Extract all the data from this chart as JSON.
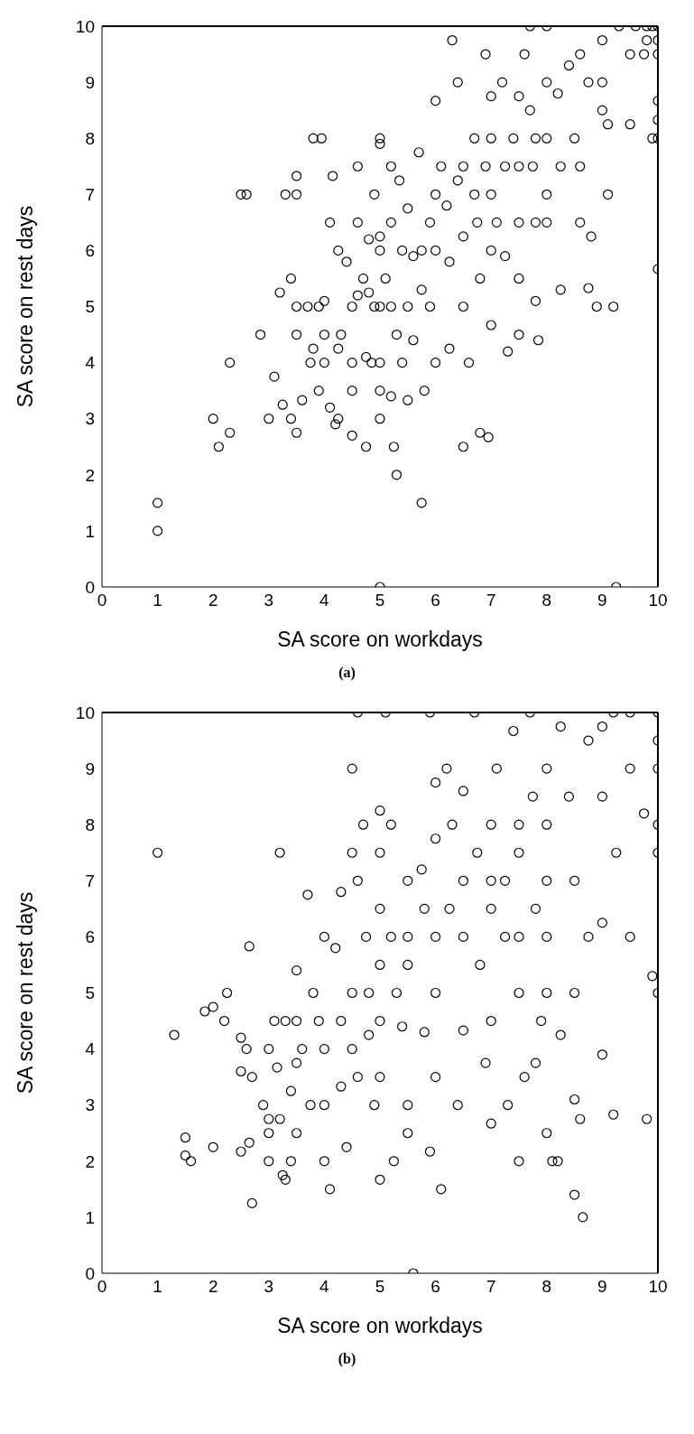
{
  "chart_data": [
    {
      "type": "scatter",
      "xlabel": "SA score on workdays",
      "ylabel": "SA score on rest days",
      "xlim": [
        0,
        10
      ],
      "ylim": [
        0,
        10
      ],
      "xticks": [
        0,
        1,
        2,
        3,
        4,
        5,
        6,
        7,
        8,
        9,
        10
      ],
      "yticks": [
        0,
        1,
        2,
        3,
        4,
        5,
        6,
        7,
        8,
        9,
        10
      ],
      "marker": "circle",
      "annotations": [
        "(a)"
      ],
      "series": [
        {
          "color": "#000000",
          "x": [
            1,
            1,
            2,
            2.1,
            2.3,
            2.3,
            2.5,
            2.6,
            2.85,
            3,
            3.1,
            3.2,
            3.25,
            3.3,
            3.4,
            3.4,
            3.5,
            3.5,
            3.5,
            3.5,
            3.5,
            3.6,
            3.7,
            3.75,
            3.8,
            3.8,
            3.9,
            3.9,
            3.95,
            4,
            4,
            4,
            4.1,
            4.1,
            4.15,
            4.2,
            4.25,
            4.25,
            4.25,
            4.3,
            4.4,
            4.5,
            4.5,
            4.5,
            4.5,
            4.6,
            4.6,
            4.6,
            4.7,
            4.75,
            4.75,
            4.8,
            4.8,
            4.85,
            4.9,
            4.9,
            5,
            5,
            5,
            5,
            5,
            5,
            5,
            5,
            5,
            5.1,
            5.2,
            5.2,
            5.2,
            5.2,
            5.25,
            5.3,
            5.3,
            5.35,
            5.4,
            5.4,
            5.5,
            5.5,
            5.5,
            5.6,
            5.6,
            5.7,
            5.75,
            5.75,
            5.75,
            5.8,
            5.9,
            5.9,
            6,
            6,
            6,
            6,
            6.1,
            6.2,
            6.25,
            6.25,
            6.3,
            6.4,
            6.4,
            6.5,
            6.5,
            6.5,
            6.5,
            6.6,
            6.7,
            6.7,
            6.75,
            6.8,
            6.8,
            6.9,
            6.9,
            6.95,
            7,
            7,
            7,
            7,
            7,
            7.1,
            7.2,
            7.25,
            7.25,
            7.3,
            7.4,
            7.5,
            7.5,
            7.5,
            7.5,
            7.5,
            7.6,
            7.7,
            7.7,
            7.75,
            7.8,
            7.8,
            7.8,
            7.85,
            8,
            8,
            8,
            8,
            8,
            8.2,
            8.25,
            8.25,
            8.4,
            8.5,
            8.6,
            8.6,
            8.6,
            8.75,
            8.75,
            8.8,
            8.9,
            9,
            9,
            9,
            9.1,
            9.1,
            9.2,
            9.25,
            9.3,
            9.5,
            9.5,
            9.6,
            9.75,
            9.9,
            10,
            10,
            10,
            10,
            10,
            10,
            10,
            9.9,
            9.8,
            9.8
          ],
          "values": [
            1,
            1.5,
            3,
            2.5,
            2.75,
            4,
            7,
            7,
            4.5,
            3,
            3.75,
            5.25,
            3.25,
            7,
            5.5,
            3,
            7.33,
            7,
            5,
            4.5,
            2.75,
            3.33,
            5,
            4,
            8,
            4.25,
            5,
            3.5,
            8,
            5.1,
            4.5,
            4,
            6.5,
            3.2,
            7.33,
            2.9,
            6,
            4.25,
            3,
            4.5,
            5.8,
            5,
            4,
            3.5,
            2.7,
            7.5,
            6.5,
            5.2,
            5.5,
            4.1,
            2.5,
            6.2,
            5.25,
            4,
            7,
            5,
            8,
            7.9,
            6.25,
            6,
            5,
            4,
            3.5,
            3,
            0,
            5.5,
            7.5,
            6.5,
            5,
            3.4,
            2.5,
            2,
            4.5,
            7.25,
            6,
            4,
            6.75,
            5,
            3.33,
            5.9,
            4.4,
            7.75,
            6,
            5.3,
            1.5,
            3.5,
            6.5,
            5,
            8.67,
            7,
            6,
            4,
            7.5,
            6.8,
            5.8,
            4.25,
            9.75,
            7.25,
            9,
            7.5,
            6.25,
            5,
            2.5,
            4,
            8,
            7,
            6.5,
            5.5,
            2.75,
            9.5,
            7.5,
            2.67,
            8.75,
            8,
            7,
            6,
            4.67,
            6.5,
            9,
            7.5,
            5.9,
            4.2,
            8,
            8.75,
            7.5,
            6.5,
            5.5,
            4.5,
            9.5,
            10,
            8.5,
            7.5,
            8,
            6.5,
            5.1,
            4.4,
            10,
            9,
            8,
            7,
            6.5,
            8.8,
            7.5,
            5.3,
            9.3,
            8,
            9.5,
            7.5,
            6.5,
            9,
            5.33,
            6.25,
            5,
            9.75,
            9,
            8.5,
            7,
            8.25,
            5,
            0,
            10,
            9.5,
            8.25,
            10,
            9.5,
            8,
            10,
            9.75,
            9.5,
            8.67,
            8.33,
            8,
            5.67,
            10,
            10,
            9.75
          ]
        }
      ]
    },
    {
      "type": "scatter",
      "xlabel": "SA score on workdays",
      "ylabel": "SA score on rest days",
      "xlim": [
        0,
        10
      ],
      "ylim": [
        0,
        10
      ],
      "xticks": [
        0,
        1,
        2,
        3,
        4,
        5,
        6,
        7,
        8,
        9,
        10
      ],
      "yticks": [
        0,
        1,
        2,
        3,
        4,
        5,
        6,
        7,
        8,
        9,
        10
      ],
      "marker": "circle",
      "annotations": [
        "(b)"
      ],
      "series": [
        {
          "color": "#000000",
          "x": [
            1,
            1.3,
            1.5,
            1.5,
            1.6,
            1.85,
            2,
            2,
            2.2,
            2.25,
            2.5,
            2.5,
            2.5,
            2.6,
            2.65,
            2.65,
            2.7,
            2.7,
            2.9,
            3,
            3,
            3,
            3,
            3.1,
            3.15,
            3.2,
            3.2,
            3.25,
            3.3,
            3.3,
            3.4,
            3.4,
            3.5,
            3.5,
            3.5,
            3.5,
            3.6,
            3.7,
            3.75,
            3.8,
            3.9,
            4,
            4,
            4,
            4,
            4.1,
            4.2,
            4.3,
            4.3,
            4.3,
            4.4,
            4.5,
            4.5,
            4.5,
            4.5,
            4.6,
            4.6,
            4.6,
            4.7,
            4.75,
            4.8,
            4.8,
            4.9,
            5,
            5,
            5,
            5,
            5,
            5,
            5,
            5.1,
            5.2,
            5.2,
            5.25,
            5.3,
            5.4,
            5.5,
            5.5,
            5.5,
            5.5,
            5.5,
            5.6,
            5.75,
            5.8,
            5.8,
            5.9,
            5.9,
            6,
            6,
            6,
            6,
            6,
            6.1,
            6.2,
            6.25,
            6.3,
            6.4,
            6.5,
            6.5,
            6.5,
            6.5,
            6.7,
            6.75,
            6.8,
            6.9,
            7,
            7,
            7,
            7,
            7,
            7.1,
            7.25,
            7.25,
            7.3,
            7.4,
            7.5,
            7.5,
            7.5,
            7.5,
            7.5,
            7.6,
            7.7,
            7.75,
            7.8,
            7.8,
            7.9,
            8,
            8,
            8,
            8,
            8,
            8,
            8.1,
            8.2,
            8.25,
            8.25,
            8.4,
            8.5,
            8.5,
            8.5,
            8.5,
            8.6,
            8.65,
            8.75,
            8.75,
            9,
            9,
            9,
            9,
            9.2,
            9.2,
            9.25,
            9.5,
            9.5,
            9.5,
            9.75,
            9.8,
            9.9,
            10,
            10,
            10,
            10,
            10,
            10
          ],
          "values": [
            7.5,
            4.25,
            2.42,
            2.1,
            2,
            4.67,
            4.75,
            2.25,
            4.5,
            5,
            4.2,
            3.6,
            2.17,
            4,
            5.83,
            2.33,
            3.5,
            1.25,
            3,
            4,
            2.75,
            2.5,
            2,
            4.5,
            3.67,
            7.5,
            2.75,
            1.75,
            1.67,
            4.5,
            3.25,
            2,
            4.5,
            3.75,
            2.5,
            5.4,
            4,
            6.75,
            3,
            5,
            4.5,
            6,
            4,
            3,
            2,
            1.5,
            5.8,
            6.8,
            4.5,
            3.33,
            2.25,
            9,
            7.5,
            5,
            4,
            10,
            7,
            3.5,
            8,
            6,
            5,
            4.25,
            3,
            8.25,
            7.5,
            6.5,
            5.5,
            4.5,
            3.5,
            1.67,
            10,
            8,
            6,
            2,
            5,
            4.4,
            7,
            6,
            5.5,
            3,
            2.5,
            0,
            7.2,
            6.5,
            4.3,
            10,
            2.17,
            8.75,
            7.75,
            6,
            5,
            3.5,
            1.5,
            9,
            6.5,
            8,
            3,
            8.6,
            7,
            6,
            4.33,
            10,
            7.5,
            5.5,
            3.75,
            8,
            7,
            6.5,
            4.5,
            2.67,
            9,
            7,
            6,
            3,
            9.67,
            8,
            7.5,
            6,
            5,
            2,
            3.5,
            10,
            8.5,
            6.5,
            3.75,
            4.5,
            9,
            8,
            7,
            6,
            5,
            2.5,
            2,
            2,
            9.75,
            4.25,
            8.5,
            7,
            5,
            1.4,
            3.1,
            2.75,
            1,
            9.5,
            6,
            9.75,
            8.5,
            6.25,
            3.9,
            10,
            2.83,
            7.5,
            10,
            6,
            9,
            8.2,
            2.75,
            5.3,
            10,
            9.5,
            9,
            8,
            7.5,
            5
          ]
        }
      ]
    }
  ]
}
